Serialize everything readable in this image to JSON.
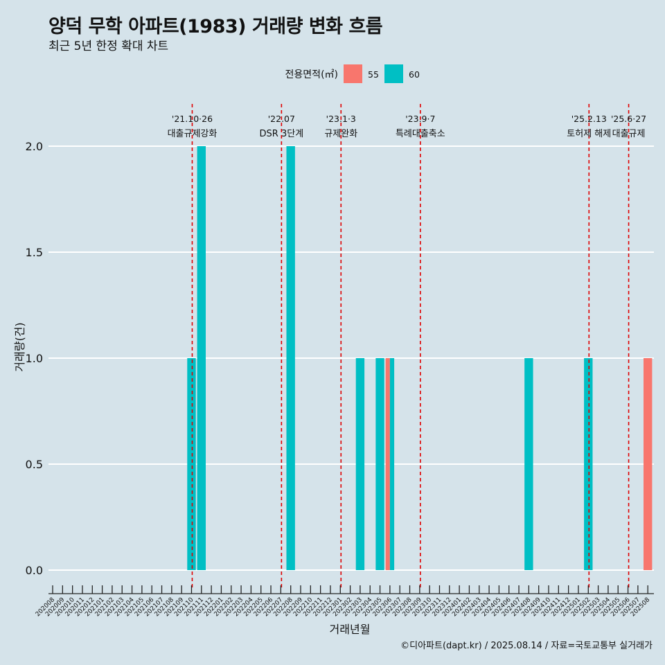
{
  "chart_data": {
    "type": "bar",
    "title": "양덕 무학 아파트(1983) 거래량 변화 흐름",
    "subtitle": "최근 5년 한정 확대 차트",
    "xlabel": "거래년월",
    "ylabel": "거래량(건)",
    "ylim": [
      0,
      2.0
    ],
    "yticks": [
      "0.0",
      "0.5",
      "1.0",
      "1.5",
      "2.0"
    ],
    "ytick_values": [
      0,
      0.5,
      1.0,
      1.5,
      2.0
    ],
    "grid": true,
    "legend": {
      "title": "전용면적(㎡)",
      "placement": "top",
      "items": [
        {
          "name": "55",
          "color": "#f8766d"
        },
        {
          "name": "60",
          "color": "#00bfc4"
        }
      ]
    },
    "categories": [
      "202008",
      "202009",
      "202010",
      "202011",
      "202012",
      "202101",
      "202102",
      "202103",
      "202104",
      "202105",
      "202106",
      "202107",
      "202108",
      "202109",
      "202110",
      "202111",
      "202112",
      "202201",
      "202202",
      "202203",
      "202204",
      "202205",
      "202206",
      "202207",
      "202208",
      "202209",
      "202210",
      "202211",
      "202212",
      "202301",
      "202302",
      "202303",
      "202304",
      "202305",
      "202306",
      "202307",
      "202308",
      "202309",
      "202310",
      "202311",
      "202312",
      "202401",
      "202402",
      "202403",
      "202404",
      "202405",
      "202406",
      "202407",
      "202408",
      "202409",
      "202410",
      "202411",
      "202412",
      "202501",
      "202502",
      "202503",
      "202504",
      "202505",
      "202506",
      "202507",
      "202508"
    ],
    "series": [
      {
        "name": "55",
        "color": "#f8766d",
        "points": [
          {
            "x": "202306",
            "y": 1
          },
          {
            "x": "202508",
            "y": 1
          }
        ]
      },
      {
        "name": "60",
        "color": "#00bfc4",
        "points": [
          {
            "x": "202110",
            "y": 1
          },
          {
            "x": "202111",
            "y": 2
          },
          {
            "x": "202208",
            "y": 2
          },
          {
            "x": "202303",
            "y": 1
          },
          {
            "x": "202305",
            "y": 1
          },
          {
            "x": "202306",
            "y": 1
          },
          {
            "x": "202408",
            "y": 1
          },
          {
            "x": "202502",
            "y": 1
          }
        ]
      }
    ],
    "annotations": [
      {
        "date": "'21.10·26",
        "label": "대출규제강화",
        "x": "202110"
      },
      {
        "date": "'22.07",
        "label": "DSR 3단계",
        "x": "202207"
      },
      {
        "date": "'23.1·3",
        "label": "규제완화",
        "x": "202301"
      },
      {
        "date": "'23.9·7",
        "label": "특례대출축소",
        "x": "202309"
      },
      {
        "date": "'25.2.13",
        "label": "토허제 해제",
        "x": "202502"
      },
      {
        "date": "'25.6·27",
        "label": "대출규제",
        "x": "202506"
      }
    ],
    "annotation_line_color": "#e00000"
  },
  "caption": "©디아파트(dapt.kr) / 2025.08.14 / 자료=국토교통부 실거래가"
}
